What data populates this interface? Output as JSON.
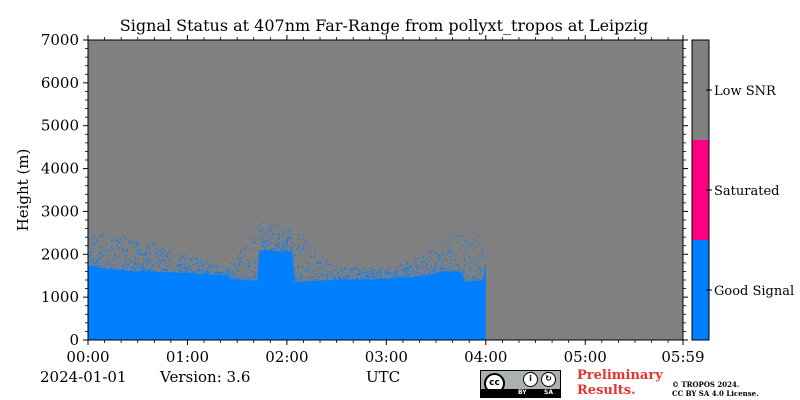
{
  "header": {
    "title": "Signal Status at 407nm Far-Range from pollyxt_tropos at Leipzig"
  },
  "footer": {
    "date": "2024-01-01",
    "version": "Version: 3.6",
    "utc_label": "UTC",
    "preliminary": "Preliminary Results.",
    "copyright_line1": "© TROPOS 2024.",
    "copyright_line2": "CC BY SA 4.0 License.",
    "license_badge": {
      "by": "BY",
      "sa": "SA"
    }
  },
  "chart_data": {
    "type": "heatmap",
    "title": "Signal Status at 407nm Far-Range from pollyxt_tropos at Leipzig",
    "xlabel": "UTC",
    "ylabel": "Height (m)",
    "x_ticks": [
      "00:00",
      "01:00",
      "02:00",
      "03:00",
      "04:00",
      "05:00",
      "05:59"
    ],
    "xlim_hours": [
      0,
      5.983
    ],
    "y_ticks": [
      0,
      1000,
      2000,
      3000,
      4000,
      5000,
      6000,
      7000
    ],
    "ylim": [
      0,
      7000
    ],
    "grid": false,
    "colorbar": {
      "labels": [
        "Good Signal",
        "Saturated",
        "Low SNR"
      ],
      "colors": [
        "#0080ff",
        "#ff0080",
        "#808080"
      ]
    },
    "background_color": "#808080",
    "good_signal_top_m": [
      {
        "t": 0.0,
        "h": 1750
      },
      {
        "t": 0.2,
        "h": 1650
      },
      {
        "t": 0.5,
        "h": 1600
      },
      {
        "t": 0.8,
        "h": 1580
      },
      {
        "t": 1.1,
        "h": 1550
      },
      {
        "t": 1.4,
        "h": 1500
      },
      {
        "t": 1.45,
        "h": 1420
      },
      {
        "t": 1.7,
        "h": 1380
      },
      {
        "t": 1.72,
        "h": 2100
      },
      {
        "t": 2.05,
        "h": 2050
      },
      {
        "t": 2.08,
        "h": 1360
      },
      {
        "t": 2.5,
        "h": 1400
      },
      {
        "t": 3.0,
        "h": 1420
      },
      {
        "t": 3.4,
        "h": 1500
      },
      {
        "t": 3.55,
        "h": 1600
      },
      {
        "t": 3.75,
        "h": 1600
      },
      {
        "t": 3.8,
        "h": 1350
      },
      {
        "t": 3.97,
        "h": 1400
      },
      {
        "t": 4.0,
        "h": 1800
      },
      {
        "t": 4.0,
        "h": 0
      }
    ],
    "scatter_top_m": [
      {
        "t": 0.0,
        "h": 2600
      },
      {
        "t": 0.5,
        "h": 2400
      },
      {
        "t": 1.0,
        "h": 2000
      },
      {
        "t": 1.4,
        "h": 1700
      },
      {
        "t": 1.7,
        "h": 2800
      },
      {
        "t": 2.05,
        "h": 2600
      },
      {
        "t": 2.5,
        "h": 1700
      },
      {
        "t": 3.0,
        "h": 1700
      },
      {
        "t": 3.4,
        "h": 2000
      },
      {
        "t": 3.6,
        "h": 2500
      },
      {
        "t": 4.0,
        "h": 2500
      }
    ]
  }
}
